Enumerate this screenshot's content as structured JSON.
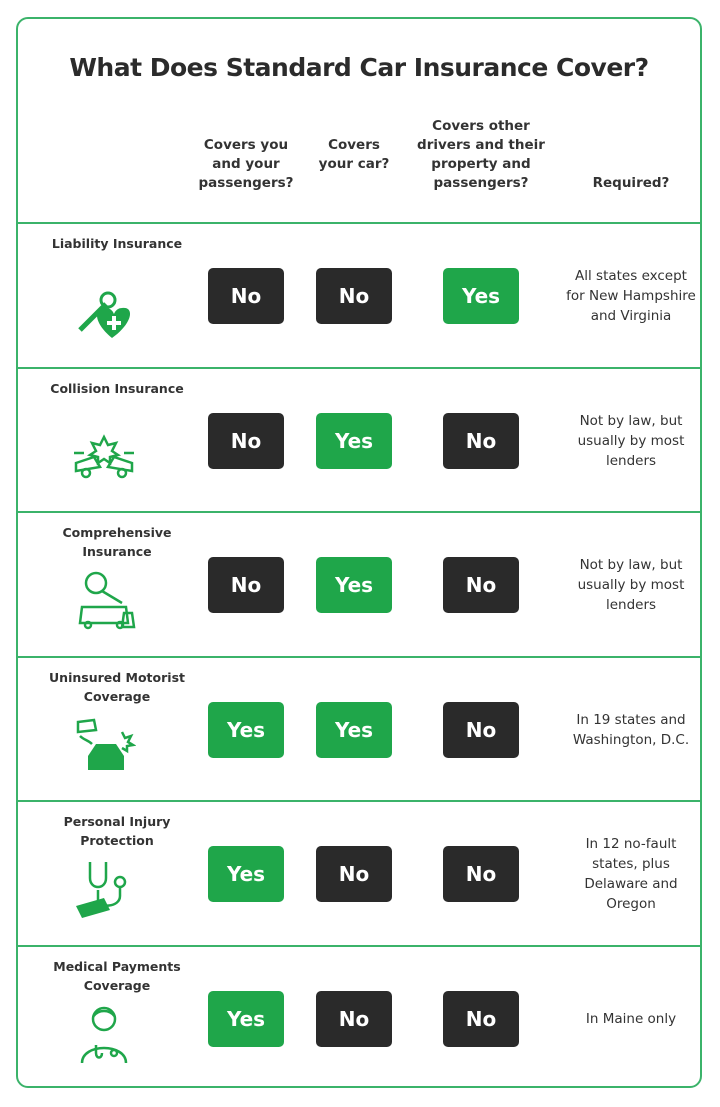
{
  "title": "What Does Standard Car Insurance Cover?",
  "headers": [
    "Covers you and your passengers?",
    "Covers your car?",
    "Covers other drivers and their property and passengers?",
    "Required?"
  ],
  "colors": {
    "yes": "#1fa64a",
    "no": "#2a2a2a",
    "border": "#3bb36a"
  },
  "rows": [
    {
      "label": "Liability Insurance",
      "icon": "wrench-heart-icon",
      "values": [
        "No",
        "No",
        "Yes"
      ],
      "required": "All states except for New Hampshire and Virginia"
    },
    {
      "label": "Collision Insurance",
      "icon": "car-crash-icon",
      "values": [
        "No",
        "Yes",
        "No"
      ],
      "required": "Not by law, but usually by most lenders"
    },
    {
      "label": "Comprehensive Insurance",
      "icon": "tree-on-car-icon",
      "values": [
        "No",
        "Yes",
        "No"
      ],
      "required": "Not by law, but usually by most lenders"
    },
    {
      "label": "Uninsured Motorist Coverage",
      "icon": "hit-and-run-icon",
      "values": [
        "Yes",
        "Yes",
        "No"
      ],
      "required": "In 19 states and Washington, D.C."
    },
    {
      "label": "Personal Injury Protection",
      "icon": "stethoscope-money-icon",
      "values": [
        "Yes",
        "No",
        "No"
      ],
      "required": "In 12 no-fault states, plus Delaware and Oregon"
    },
    {
      "label": "Medical Payments Coverage",
      "icon": "doctor-icon",
      "values": [
        "Yes",
        "No",
        "No"
      ],
      "required": "In Maine only"
    }
  ]
}
